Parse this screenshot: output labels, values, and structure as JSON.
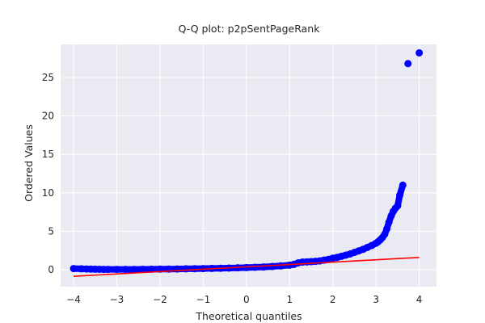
{
  "chart_data": {
    "type": "scatter",
    "title": "Q-Q plot: p2pSentPageRank",
    "xlabel": "Theoretical quantiles",
    "ylabel": "Ordered Values",
    "xlim": [
      -4.3,
      4.4
    ],
    "ylim": [
      -2.2,
      29.3
    ],
    "xticks": [
      -4,
      -3,
      -2,
      -1,
      0,
      1,
      2,
      3,
      4
    ],
    "xtick_labels": [
      "−4",
      "−3",
      "−2",
      "−1",
      "0",
      "1",
      "2",
      "3",
      "4"
    ],
    "yticks": [
      0,
      5,
      10,
      15,
      20,
      25
    ],
    "ytick_labels": [
      "0",
      "5",
      "10",
      "15",
      "20",
      "25"
    ],
    "grid": true,
    "background": "#eaeaf2",
    "series": [
      {
        "kind": "points",
        "color": "#0000ff",
        "x": [
          -4.0,
          -3.82,
          -3.7,
          -3.6,
          -3.5,
          -3.4,
          -3.3,
          -3.2,
          -3.0,
          -2.8,
          -2.6,
          -2.4,
          -2.2,
          -2.0,
          -1.8,
          -1.6,
          -1.4,
          -1.2,
          -1.0,
          -0.8,
          -0.6,
          -0.4,
          -0.2,
          0.0,
          0.2,
          0.4,
          0.6,
          0.8,
          1.0,
          1.1,
          1.2,
          1.3,
          1.4,
          1.5,
          1.6,
          1.7,
          1.8,
          1.9,
          2.0,
          2.1,
          2.2,
          2.3,
          2.4,
          2.5,
          2.6,
          2.7,
          2.8,
          2.9,
          3.0,
          3.05,
          3.1,
          3.15,
          3.2,
          3.25,
          3.3,
          3.35,
          3.4,
          3.45,
          3.5,
          3.55,
          3.62,
          3.74,
          4.0
        ],
        "y": [
          0.15,
          0.12,
          0.1,
          0.08,
          0.07,
          0.06,
          0.05,
          0.05,
          0.05,
          0.05,
          0.05,
          0.06,
          0.07,
          0.08,
          0.09,
          0.1,
          0.12,
          0.13,
          0.15,
          0.17,
          0.19,
          0.22,
          0.25,
          0.28,
          0.32,
          0.36,
          0.42,
          0.5,
          0.6,
          0.7,
          0.9,
          1.0,
          1.02,
          1.05,
          1.1,
          1.15,
          1.25,
          1.35,
          1.5,
          1.6,
          1.75,
          1.9,
          2.05,
          2.25,
          2.45,
          2.65,
          2.9,
          3.15,
          3.45,
          3.65,
          3.9,
          4.2,
          4.6,
          5.3,
          6.2,
          7.0,
          7.6,
          8.0,
          8.3,
          9.7,
          11.0,
          26.8,
          28.2
        ]
      },
      {
        "kind": "line",
        "color": "#ff0000",
        "x": [
          -4.0,
          4.0
        ],
        "y": [
          -0.85,
          1.6
        ]
      }
    ]
  }
}
